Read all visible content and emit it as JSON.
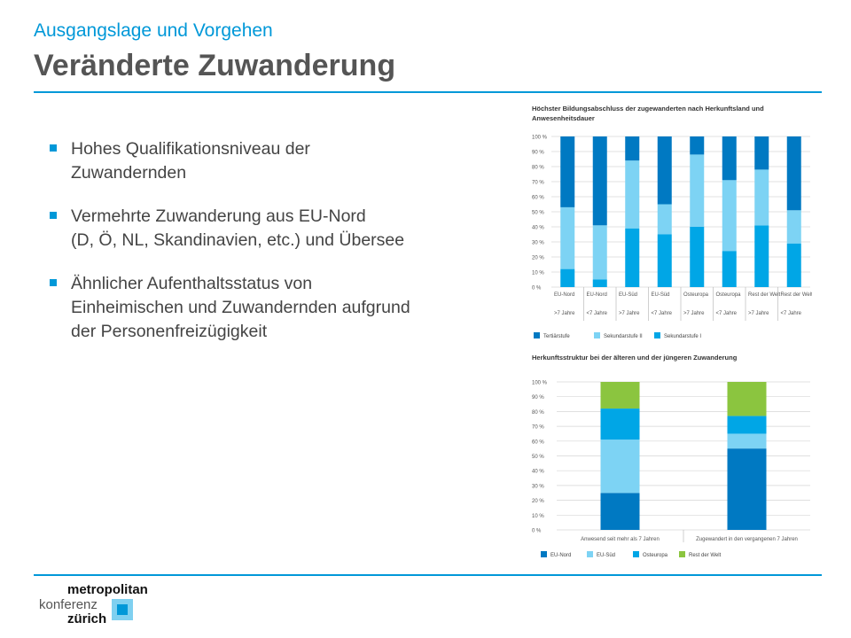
{
  "header": {
    "subtitle": "Ausgangslage und Vorgehen",
    "title": "Veränderte Zuwanderung"
  },
  "bullets": [
    {
      "lines": [
        "Hohes Qualifikationsniveau der",
        "Zuwandernden"
      ]
    },
    {
      "lines": [
        "Vermehrte Zuwanderung aus EU-Nord",
        "(D, Ö, NL, Skandinavien, etc.) und Übersee"
      ]
    },
    {
      "lines": [
        "Ähnlicher Aufenthaltsstatus von",
        "Einheimischen und Zuwandernden aufgrund",
        "der Personenfreizügigkeit"
      ]
    }
  ],
  "chart_data": [
    {
      "type": "bar",
      "stacked": true,
      "title_lines": [
        "Höchster Bildungsabschluss der zugewanderten nach Herkunftsland und",
        "Anwesenheitsdauer"
      ],
      "categories": [
        "EU-Nord",
        "EU-Nord",
        "EU-Süd",
        "EU-Süd",
        "Osteuropa",
        "Osteuropa",
        "Rest der Welt",
        "Rest der Welt"
      ],
      "sublabels": [
        ">7 Jahre",
        "<7 Jahre",
        ">7 Jahre",
        "<7 Jahre",
        ">7 Jahre",
        "<7 Jahre",
        ">7 Jahre",
        "<7 Jahre"
      ],
      "yticks": [
        "0 %",
        "10 %",
        "20 %",
        "30 %",
        "40 %",
        "50 %",
        "60 %",
        "70 %",
        "80 %",
        "90 %",
        "100 %"
      ],
      "ylim": [
        0,
        100
      ],
      "series": [
        {
          "name": "Sekundarstufe I",
          "color": "#00a6e6",
          "values": [
            12,
            5,
            39,
            35,
            40,
            24,
            41,
            29
          ]
        },
        {
          "name": "Sekundarstufe II",
          "color": "#7dd3f4",
          "values": [
            41,
            36,
            45,
            20,
            48,
            47,
            37,
            22
          ]
        },
        {
          "name": "Tertiärstufe",
          "color": "#0079c2",
          "values": [
            47,
            59,
            16,
            45,
            12,
            29,
            22,
            49
          ]
        }
      ],
      "legend": [
        "Tertiärstufe",
        "Sekundarstufe II",
        "Sekundarstufe I"
      ],
      "legend_colors": [
        "#0079c2",
        "#7dd3f4",
        "#00a6e6"
      ],
      "grid": true
    },
    {
      "type": "bar",
      "stacked": true,
      "title": "Herkunftsstruktur bei der älteren und der jüngeren Zuwanderung",
      "categories": [
        "Anwesend seit mehr als 7 Jahren",
        "Zugewandert in den vergangenen 7 Jahren"
      ],
      "yticks": [
        "0 %",
        "10 %",
        "20 %",
        "30 %",
        "40 %",
        "50 %",
        "60 %",
        "70 %",
        "80 %",
        "90 %",
        "100 %"
      ],
      "ylim": [
        0,
        100
      ],
      "series": [
        {
          "name": "EU-Nord",
          "color": "#0079c2",
          "values": [
            25,
            55
          ]
        },
        {
          "name": "EU-Süd",
          "color": "#7dd3f4",
          "values": [
            36,
            10
          ]
        },
        {
          "name": "Osteuropa",
          "color": "#00a6e6",
          "values": [
            21,
            12
          ]
        },
        {
          "name": "Rest der Welt",
          "color": "#8bc53f",
          "values": [
            18,
            23
          ]
        }
      ],
      "grid": true
    }
  ],
  "logo": {
    "line1": "metropolitan",
    "line2": "konferenz",
    "line3": "zürich"
  }
}
